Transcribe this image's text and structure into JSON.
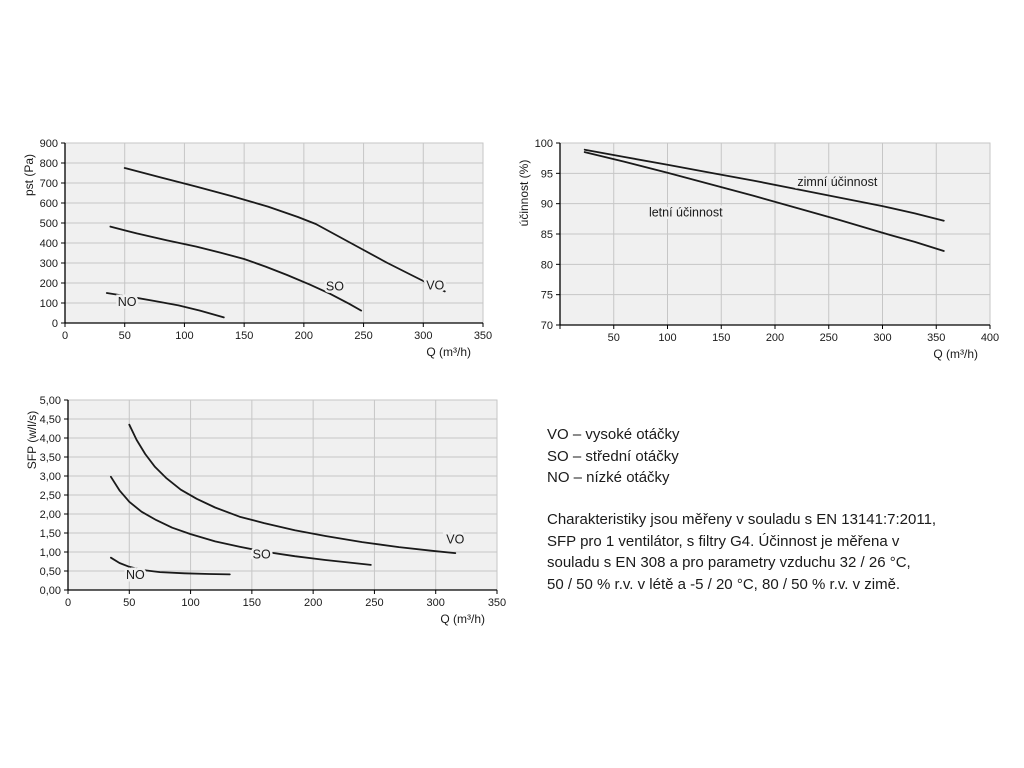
{
  "colors": {
    "curve": "#1a1a1a",
    "grid": "#c6c6c6",
    "plot_bg": "#f0f0f0",
    "axis": "#000000",
    "text": "#1a1a1a"
  },
  "chart_data": [
    {
      "type": "line",
      "title": "",
      "xlabel": "Q (m³/h)",
      "ylabel": "pst (Pa)",
      "xlim": [
        0,
        350
      ],
      "ylim": [
        0,
        900
      ],
      "x_ticks": [
        0,
        50,
        100,
        150,
        200,
        250,
        300,
        350
      ],
      "x_tick_labels": [
        "0",
        "50",
        "100",
        "150",
        "200",
        "250",
        "300",
        "350"
      ],
      "y_ticks": [
        0,
        100,
        200,
        300,
        400,
        500,
        600,
        700,
        800,
        900
      ],
      "y_tick_labels": [
        "0",
        "100",
        "200",
        "300",
        "400",
        "500",
        "600",
        "700",
        "800",
        "900"
      ],
      "series": [
        {
          "name": "VO",
          "label": "VO",
          "label_at": [
            310,
            168
          ],
          "points": [
            [
              50,
              775
            ],
            [
              80,
              728
            ],
            [
              110,
              682
            ],
            [
              140,
              634
            ],
            [
              170,
              582
            ],
            [
              195,
              530
            ],
            [
              210,
              495
            ],
            [
              230,
              430
            ],
            [
              250,
              365
            ],
            [
              270,
              300
            ],
            [
              290,
              240
            ],
            [
              305,
              195
            ],
            [
              318,
              158
            ]
          ]
        },
        {
          "name": "SO",
          "label": "SO",
          "label_at": [
            226,
            162
          ],
          "points": [
            [
              38,
              482
            ],
            [
              60,
              448
            ],
            [
              85,
              414
            ],
            [
              110,
              382
            ],
            [
              130,
              352
            ],
            [
              150,
              320
            ],
            [
              168,
              282
            ],
            [
              186,
              240
            ],
            [
              205,
              192
            ],
            [
              222,
              146
            ],
            [
              238,
              96
            ],
            [
              248,
              62
            ]
          ]
        },
        {
          "name": "NO",
          "label": "NO",
          "label_at": [
            52,
            86
          ],
          "points": [
            [
              35,
              150
            ],
            [
              55,
              131
            ],
            [
              75,
              110
            ],
            [
              95,
              88
            ],
            [
              113,
              62
            ],
            [
              133,
              28
            ]
          ]
        }
      ]
    },
    {
      "type": "line",
      "title": "",
      "xlabel": "Q (m³/h)",
      "ylabel": "účinnost (%)",
      "xlim": [
        0,
        400
      ],
      "ylim": [
        70,
        100
      ],
      "x_ticks": [
        0,
        50,
        100,
        150,
        200,
        250,
        300,
        350,
        400
      ],
      "x_tick_labels": [
        "",
        "50",
        "100",
        "150",
        "200",
        "250",
        "300",
        "350",
        "400"
      ],
      "y_ticks": [
        70,
        75,
        80,
        85,
        90,
        95,
        100
      ],
      "y_tick_labels": [
        "70",
        "75",
        "80",
        "85",
        "90",
        "95",
        "100"
      ],
      "series": [
        {
          "name": "zimni",
          "label": "zimní účinnost",
          "label_at": [
            258,
            92.9
          ],
          "points": [
            [
              23,
              98.9
            ],
            [
              60,
              97.7
            ],
            [
              100,
              96.4
            ],
            [
              140,
              95.1
            ],
            [
              180,
              93.8
            ],
            [
              220,
              92.4
            ],
            [
              260,
              91.0
            ],
            [
              300,
              89.6
            ],
            [
              330,
              88.4
            ],
            [
              357,
              87.2
            ]
          ]
        },
        {
          "name": "letni",
          "label": "letní účinnost",
          "label_at": [
            117,
            87.9
          ],
          "points": [
            [
              23,
              98.5
            ],
            [
              60,
              96.9
            ],
            [
              100,
              95.1
            ],
            [
              140,
              93.2
            ],
            [
              180,
              91.3
            ],
            [
              220,
              89.3
            ],
            [
              260,
              87.3
            ],
            [
              300,
              85.2
            ],
            [
              330,
              83.7
            ],
            [
              357,
              82.2
            ]
          ]
        }
      ]
    },
    {
      "type": "line",
      "title": "",
      "xlabel": "Q (m³/h)",
      "ylabel": "SFP (w/l/s)",
      "xlim": [
        0,
        350
      ],
      "ylim": [
        0,
        5
      ],
      "x_ticks": [
        0,
        50,
        100,
        150,
        200,
        250,
        300,
        350
      ],
      "x_tick_labels": [
        "0",
        "50",
        "100",
        "150",
        "200",
        "250",
        "300",
        "350"
      ],
      "y_ticks": [
        0,
        0.5,
        1,
        1.5,
        2,
        2.5,
        3,
        3.5,
        4,
        4.5,
        5
      ],
      "y_tick_labels": [
        "0,00",
        "0,50",
        "1,00",
        "1,50",
        "2,00",
        "2,50",
        "3,00",
        "3,50",
        "4,00",
        "4,50",
        "5,00"
      ],
      "series": [
        {
          "name": "VO",
          "label": "VO",
          "label_at": [
            316,
            1.22
          ],
          "points": [
            [
              50,
              4.35
            ],
            [
              56,
              3.95
            ],
            [
              63,
              3.58
            ],
            [
              71,
              3.24
            ],
            [
              80,
              2.95
            ],
            [
              92,
              2.64
            ],
            [
              105,
              2.4
            ],
            [
              120,
              2.17
            ],
            [
              140,
              1.93
            ],
            [
              160,
              1.76
            ],
            [
              185,
              1.57
            ],
            [
              210,
              1.42
            ],
            [
              240,
              1.26
            ],
            [
              270,
              1.13
            ],
            [
              300,
              1.02
            ],
            [
              316,
              0.97
            ]
          ]
        },
        {
          "name": "SO",
          "label": "SO",
          "label_at": [
            158,
            0.83
          ],
          "points": [
            [
              35,
              2.98
            ],
            [
              42,
              2.62
            ],
            [
              50,
              2.32
            ],
            [
              60,
              2.06
            ],
            [
              72,
              1.84
            ],
            [
              85,
              1.64
            ],
            [
              100,
              1.47
            ],
            [
              120,
              1.28
            ],
            [
              140,
              1.14
            ],
            [
              160,
              1.01
            ],
            [
              185,
              0.89
            ],
            [
              210,
              0.79
            ],
            [
              230,
              0.72
            ],
            [
              247,
              0.66
            ]
          ]
        },
        {
          "name": "NO",
          "label": "NO",
          "label_at": [
            55,
            0.29
          ],
          "points": [
            [
              35,
              0.85
            ],
            [
              42,
              0.71
            ],
            [
              50,
              0.61
            ],
            [
              60,
              0.53
            ],
            [
              75,
              0.47
            ],
            [
              95,
              0.44
            ],
            [
              115,
              0.42
            ],
            [
              132,
              0.41
            ]
          ]
        }
      ]
    }
  ],
  "legend": {
    "items": [
      "VO – vysoké otáčky",
      "SO – střední otáčky",
      "NO – nízké otáčky"
    ]
  },
  "note": {
    "lines": [
      "Charakteristiky jsou měřeny v souladu s EN 13141:7:2011,",
      "SFP pro 1 ventilátor, s filtry G4. Účinnost je měřena v",
      "souladu s EN 308 a pro parametry vzduchu 32 / 26 °C,",
      "50 / 50 % r.v. v létě a -5 / 20 °C, 80 / 50 % r.v. v zimě."
    ]
  }
}
